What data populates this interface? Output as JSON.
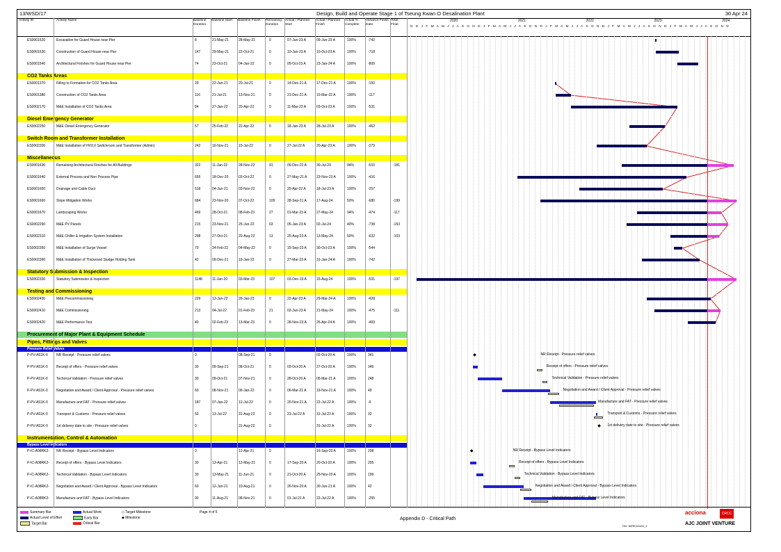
{
  "header": {
    "contract": "13/WSD/17",
    "title": "Design, Build and Operate Stage 1 of Tseung Kwan O Desalination Plant",
    "date": "30 Apr 24"
  },
  "columns": [
    "Activity ID",
    "Activity Name",
    "Baseline Duration",
    "Baseline Start",
    "Baseline Finish",
    "Remaining Duration",
    "Actual / Planned Start",
    "Actual / Planned Finish",
    "Actual % Complete",
    "Variance Finish Date",
    "Total Float"
  ],
  "timeline": {
    "years": [
      "2020",
      "2021",
      "2022",
      "2023",
      "2024"
    ],
    "months": "N D J F M A M J J A S O N D J F M A M J J A S O N D J F M A M J J A S O N D J F M A M J J A S O N D J F M A M J J A S O N D"
  },
  "rows": [
    {
      "id": "ES0001520",
      "name": "Excavation for Guard House near Pier",
      "bd": "8",
      "bs": "21-May-21",
      "bf": "28-May-21",
      "rd": "0",
      "as": "07-Jun-23 A",
      "af": "09-Jun-23 A",
      "pc": "100%",
      "var": "-742",
      "tf": ""
    },
    {
      "id": "ES0001530",
      "name": "Construction of Guard House near Pier",
      "bd": "147",
      "bs": "29-May-21",
      "bf": "22-Oct-21",
      "rd": "0",
      "as": "10-Jun-23 A",
      "af": "10-Oct-23 A",
      "pc": "100%",
      "var": "-718",
      "tf": ""
    },
    {
      "id": "ES0001540",
      "name": "Architectural Finishes for Guard House near Pier",
      "bd": "74",
      "bs": "23-Oct-21",
      "bf": "04-Jan-22",
      "rd": "0",
      "as": "05-Oct-23 A",
      "af": "23-Jan-24 A",
      "pc": "100%",
      "var": "-809",
      "tf": ""
    },
    {
      "section": "CO2 Tanks Areas"
    },
    {
      "id": "ES0001370",
      "name": "Filling to Formation for CO2 Tanks Area",
      "bd": "29",
      "bs": "22-Jun-21",
      "bf": "20-Jul-21",
      "rd": "0",
      "as": "14-Dec-21 A",
      "af": "17-Dec-21 A",
      "pc": "100%",
      "var": "-150",
      "tf": ""
    },
    {
      "id": "ES0001380",
      "name": "Construction of CO2 Tanks Area",
      "bd": "116",
      "bs": "21-Jul-21",
      "bf": "13-Nov-21",
      "rd": "0",
      "as": "21-Dec-21 A",
      "af": "10-Mar-22 A",
      "pc": "100%",
      "var": "-117",
      "tf": ""
    },
    {
      "id": "ES0002170",
      "name": "M&E Installation of CO2 Tanks Area",
      "bd": "84",
      "bs": "27-Jan-22",
      "bf": "20-Apr-22",
      "rd": "0",
      "as": "11-Mar-22 A",
      "af": "03-Oct-23 A",
      "pc": "100%",
      "var": "-531",
      "tf": ""
    },
    {
      "section": "Diesel Emergency Generator"
    },
    {
      "id": "ES0002250",
      "name": "M&E Diesel Emergency Generator",
      "bd": "57",
      "bs": "25-Feb-22",
      "bf": "22-Apr-22",
      "rd": "0",
      "as": "18-Jan-23 A",
      "af": "28-Jul-23 A",
      "pc": "100%",
      "var": "-462",
      "tf": ""
    },
    {
      "section": "Switch Room and Transformer Installation"
    },
    {
      "id": "ES0002200",
      "name": "M&E Installation of HV/LV Switchroom and Transformer (Admin)",
      "bd": "242",
      "bs": "16-Nov-21",
      "bf": "15-Jul-22",
      "rd": "0",
      "as": "27-Jul-22 A",
      "af": "20-Apr-23 A",
      "pc": "100%",
      "var": "-279",
      "tf": ""
    },
    {
      "section": "Miscellaneous"
    },
    {
      "id": "ES0001630",
      "name": "Remaining Architectural Finishes for All Buildings",
      "bd": "322",
      "bs": "11-Jan-22",
      "bf": "28-Nov-22",
      "rd": "91",
      "as": "09-Dec-22 A",
      "af": "30-Jul-24",
      "pc": "94%",
      "var": "-610",
      "tf": "-181"
    },
    {
      "id": "ES0001640",
      "name": "External Process and Non Process Pipe",
      "bd": "655",
      "bs": "18-Dec-20",
      "bf": "03-Oct-22",
      "rd": "0",
      "as": "27-May-21 A",
      "af": "23-Nov-23 A",
      "pc": "100%",
      "var": "-416",
      "tf": ""
    },
    {
      "id": "ES0001650",
      "name": "Drainage and Cable Duct",
      "bd": "518",
      "bs": "04-Jun-21",
      "bf": "03-Nov-22",
      "rd": "0",
      "as": "25-Apr-22 A",
      "af": "18-Jul-23 A",
      "pc": "100%",
      "var": "-257",
      "tf": ""
    },
    {
      "id": "ES0001660",
      "name": "Slope Mitigation Works",
      "bd": "684",
      "bs": "23-Nov-20",
      "bf": "07-Oct-22",
      "rd": "109",
      "as": "28-Sep-21 A",
      "af": "17-Aug-24",
      "pc": "50%",
      "var": "-680",
      "tf": "-199"
    },
    {
      "id": "ES0001670",
      "name": "Landscaping Works",
      "bd": "469",
      "bs": "28-Oct-21",
      "bf": "08-Feb-23",
      "rd": "27",
      "as": "01-Mar-23 A",
      "af": "27-May-24",
      "pc": "94%",
      "var": "-474",
      "tf": "-117"
    },
    {
      "id": "ES0002290",
      "name": "M&E PV Panels",
      "bd": "215",
      "bs": "23-Nov-21",
      "bf": "25-Jun-22",
      "rd": "63",
      "as": "05-Jan-23 A",
      "af": "02-Jul-24",
      "pc": "40%",
      "var": "-738",
      "tf": "-153"
    },
    {
      "id": "ES0002310",
      "name": "M&E Chiller & Irrigation System Installation",
      "bd": "298",
      "bs": "27-Oct-21",
      "bf": "20-Aug-22",
      "rd": "13",
      "as": "25-Aug-23 A",
      "af": "13-May-24",
      "pc": "50%",
      "var": "-632",
      "tf": "-103"
    },
    {
      "id": "ES0002350",
      "name": "M&E Installation of Surge Vessel",
      "bd": "70",
      "bs": "24-Feb-22",
      "bf": "04-May-22",
      "rd": "0",
      "as": "15-Sep-23 A",
      "af": "30-Oct-23 A",
      "pc": "100%",
      "var": "-544",
      "tf": ""
    },
    {
      "id": "ES0002390",
      "name": "M&E Installation of Thickened Sludge Holding Tank",
      "bd": "42",
      "bs": "09-Dec-21",
      "bf": "19-Jan-22",
      "rd": "0",
      "as": "27-Mar-23 A",
      "af": "31-Jan-24 A",
      "pc": "100%",
      "var": "-742",
      "tf": ""
    },
    {
      "section": "Statutory Submission & Inspection"
    },
    {
      "id": "ES0002330",
      "name": "Statutory Submission & Inspection",
      "bd": "1148",
      "bs": "11-Jan-20",
      "bf": "03-Mar-23",
      "rd": "107",
      "as": "03-Dec-19 A",
      "af": "15-Aug-24",
      "pc": "100%",
      "var": "-531",
      "tf": "-197"
    },
    {
      "section": "Testing and Commissioning"
    },
    {
      "id": "ES0002400",
      "name": "M&E Precommissioning",
      "bd": "229",
      "bs": "12-Jun-22",
      "bf": "26-Jan-23",
      "rd": "0",
      "as": "22-Apr-23 A",
      "af": "29-Mar-24 A",
      "pc": "100%",
      "var": "-428",
      "tf": ""
    },
    {
      "id": "ES0002410",
      "name": "M&E Commissioning",
      "bd": "213",
      "bs": "04-Jul-22",
      "bf": "01-Feb-23",
      "rd": "21",
      "as": "02-Jun-23 A",
      "af": "21-May-24",
      "pc": "100%",
      "var": "-475",
      "tf": "-111"
    },
    {
      "id": "ES0002420",
      "name": "M&E Performance Test",
      "bd": "40",
      "bs": "02-Feb-23",
      "bf": "13-Mar-23",
      "rd": "0",
      "as": "28-Nov-23 A",
      "af": "26-Apr-24 A",
      "pc": "100%",
      "var": "-409",
      "tf": ""
    }
  ],
  "procurement": {
    "title": "Procurement of Major Plant & Equipment Schedule",
    "sections": [
      {
        "name": "Pipes, Fittings and Valves",
        "sub": "Pressure Relief Valves",
        "rows": [
          {
            "id": "P-PV-A51K-0",
            "name": "NR Receipt - Pressure relief valves",
            "bd": "0",
            "bs": "",
            "bf": "08-Sep-21",
            "rd": "0",
            "as": "",
            "af": "02-Oct-20 A",
            "pc": "100%",
            "var": "341",
            "label": "NR Receipt - Pressure relief valves"
          },
          {
            "id": "P-PV-A51K-0",
            "name": "Receipt of offers - Pressure relief valves",
            "bd": "30",
            "bs": "09-Sep-21",
            "bf": "08-Oct-21",
            "rd": "0",
            "as": "03-Oct-20 A",
            "af": "27-Oct-20 A",
            "pc": "100%",
            "var": "346",
            "label": "Receipt of offers - Pressure relief valves"
          },
          {
            "id": "P-PV-A51K-0",
            "name": "Technical Validation - Pressure relief valves",
            "bd": "30",
            "bs": "09-Oct-21",
            "bf": "07-Nov-21",
            "rd": "0",
            "as": "28-Oct-20 A",
            "af": "05-Mar-21 A",
            "pc": "100%",
            "var": "248",
            "label": "Technical Validation - Pressure relief valves"
          },
          {
            "id": "P-PV-A51K-0",
            "name": "Negotiation and Award / Client Approval - Pressure relief valves",
            "bd": "60",
            "bs": "08-Nov-21",
            "bf": "06-Jan-22",
            "rd": "0",
            "as": "06-Mar-21 A",
            "af": "19-Nov-21 A",
            "pc": "100%",
            "var": "49",
            "label": "Negotiation and Award / Client Approval - Pressure relief valves"
          },
          {
            "id": "P-PV-A51K-0",
            "name": "Manufacture and FAT - Pressure relief valves",
            "bd": "187",
            "bs": "07-Jan-22",
            "bf": "12-Jul-22",
            "rd": "0",
            "as": "20-Nov-21 A",
            "af": "22-Jul-22 A",
            "pc": "100%",
            "var": "-9",
            "label": "Manufacture and FAT - Pressure relief valves"
          },
          {
            "id": "P-PV-A51K-0",
            "name": "Transport & Customs - Pressure relief valves",
            "bd": "50",
            "bs": "13-Jul-22",
            "bf": "31-Aug-22",
            "rd": "0",
            "as": "23-Jul-22 A",
            "af": "31-Jul-22 A",
            "pc": "100%",
            "var": "32",
            "label": "Transport & Customs - Pressure relief valves"
          },
          {
            "id": "P-PV-A51K-0",
            "name": "1st delivery date to site - Pressure relief valves",
            "bd": "0",
            "bs": "",
            "bf": "31-Aug-22",
            "rd": "0",
            "as": "",
            "af": "31-Jul-22 A",
            "pc": "100%",
            "var": "32",
            "label": "1st delivery date to site - Pressure relief valves"
          }
        ]
      },
      {
        "name": "Instrumentation, Control & Automation",
        "sub": "Bypass Level Indicators",
        "rows": [
          {
            "id": "P-IC-A08RK2-",
            "name": "NR Receipt - Bypass Level Indicators",
            "bd": "0",
            "bs": "",
            "bf": "12-Apr-21",
            "rd": "0",
            "as": "",
            "af": "16-Sep-20 A",
            "pc": "100%",
            "var": "208",
            "label": "NR Receipt - Bypass Level Indicators"
          },
          {
            "id": "P-IC-A08RK2-",
            "name": "Receipt of offers - Bypass Level Indicators",
            "bd": "30",
            "bs": "13-Apr-21",
            "bf": "12-May-21",
            "rd": "0",
            "as": "17-Sep-20 A",
            "af": "20-Oct-20 A",
            "pc": "100%",
            "var": "205",
            "label": "Receipt of offers - Bypass Level Indicators"
          },
          {
            "id": "P-IC-A08RK2-",
            "name": "Technical Validation - Bypass Level Indicators",
            "bd": "30",
            "bs": "13-May-21",
            "bf": "11-Jun-21",
            "rd": "0",
            "as": "21-Oct-20 A",
            "af": "25-Nov-20 A",
            "pc": "100%",
            "var": "199",
            "label": "Technical Validation - Bypass Level Indicators"
          },
          {
            "id": "P-IC-A08RK2-",
            "name": "Negotiation and Award / Client Approval - Bypass Level Indicators",
            "bd": "60",
            "bs": "12-Jun-21",
            "bf": "10-Aug-21",
            "rd": "0",
            "as": "26-Nov-20 A",
            "af": "30-Jun-21 A",
            "pc": "100%",
            "var": "42",
            "label": "Negotiation and Award / Client Approval - Bypass Level Indicators"
          },
          {
            "id": "P-IC-A08RK2-",
            "name": "Manufacture and FAT - Bypass Level Indicators",
            "bd": "90",
            "bs": "11-Aug-21",
            "bf": "08-Nov-21",
            "rd": "0",
            "as": "01-Jul-21 A",
            "af": "22-Jul-22 A",
            "pc": "100%",
            "var": "-255",
            "label": "Manufacture and FAT - Bypass Level Indicators"
          }
        ]
      }
    ]
  },
  "gantt_labels": [
    "Remaining Ar",
    "Slope Mitiga",
    "Landscaping Works",
    "M&E PV Panels",
    "M&E Chiller & Irrigatio",
    "Statutory Su",
    "M&E Commissioning"
  ],
  "footer": {
    "legend": [
      "Summary Bar",
      "Actual Work",
      "Target Milestone",
      "Actual Level of Effort",
      "Early Bar",
      "Milestone",
      "Target Bar",
      "Critical Bar"
    ],
    "page": "Page 4 of 5",
    "appendix": "Appendix D - Critical Path",
    "file": "File: M/RE2/2404_4",
    "brand1": "acciona",
    "brand2": "CRCC",
    "jv": "AJC JOINT VENTURE"
  }
}
